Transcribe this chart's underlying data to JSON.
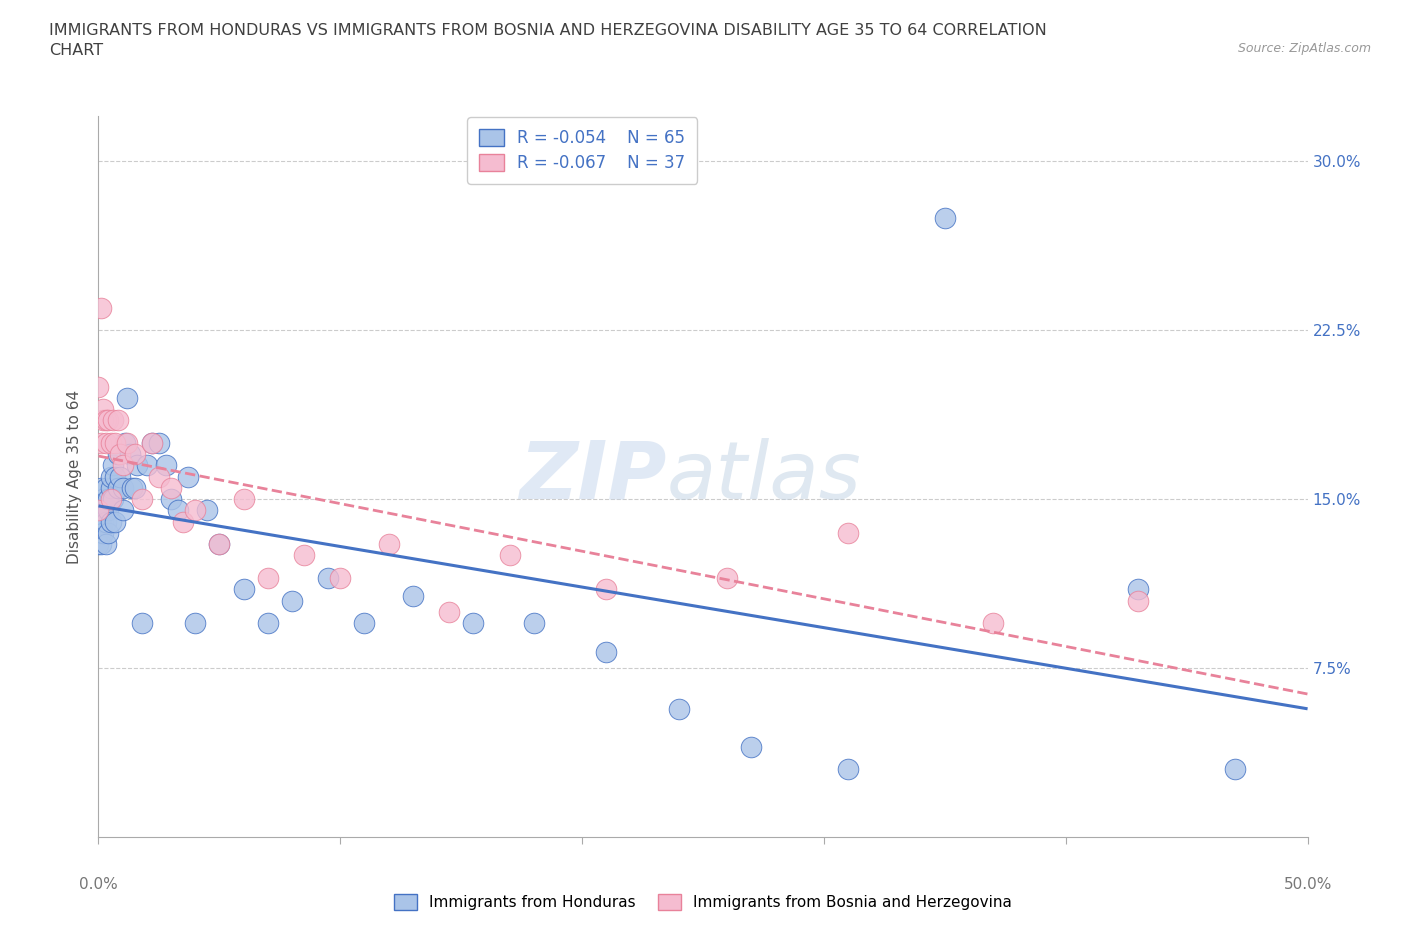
{
  "title": "IMMIGRANTS FROM HONDURAS VS IMMIGRANTS FROM BOSNIA AND HERZEGOVINA DISABILITY AGE 35 TO 64 CORRELATION\nCHART",
  "source_text": "Source: ZipAtlas.com",
  "ylabel": "Disability Age 35 to 64",
  "xlim": [
    0.0,
    0.5
  ],
  "ylim": [
    0.0,
    0.32
  ],
  "xticks": [
    0.0,
    0.1,
    0.2,
    0.3,
    0.4,
    0.5
  ],
  "xtick_labels": [
    "",
    "",
    "",
    "",
    "",
    ""
  ],
  "xedge_labels": [
    "0.0%",
    "50.0%"
  ],
  "yticks": [
    0.075,
    0.15,
    0.225,
    0.3
  ],
  "ytick_labels": [
    "7.5%",
    "15.0%",
    "22.5%",
    "30.0%"
  ],
  "color_blue": "#aac4e8",
  "color_pink": "#f5bcd0",
  "line_blue": "#4472c4",
  "line_pink": "#e8829a",
  "R_blue": -0.054,
  "N_blue": 65,
  "R_pink": -0.067,
  "N_pink": 37,
  "legend_label_blue": "Immigrants from Honduras",
  "legend_label_pink": "Immigrants from Bosnia and Herzegovina",
  "watermark_part1": "ZIP",
  "watermark_part2": "atlas",
  "background_color": "#ffffff",
  "grid_color": "#cccccc",
  "title_color": "#404040",
  "axis_label_color": "#555555",
  "tick_label_color": "#777777",
  "right_ytick_color": "#4472c4",
  "blue_scatter_x": [
    0.0,
    0.0,
    0.0,
    0.0,
    0.0,
    0.001,
    0.001,
    0.001,
    0.001,
    0.001,
    0.002,
    0.002,
    0.002,
    0.002,
    0.003,
    0.003,
    0.003,
    0.003,
    0.004,
    0.004,
    0.004,
    0.005,
    0.005,
    0.005,
    0.006,
    0.006,
    0.007,
    0.007,
    0.008,
    0.008,
    0.009,
    0.01,
    0.01,
    0.011,
    0.012,
    0.013,
    0.014,
    0.015,
    0.016,
    0.018,
    0.02,
    0.022,
    0.025,
    0.028,
    0.03,
    0.033,
    0.037,
    0.04,
    0.045,
    0.05,
    0.06,
    0.07,
    0.08,
    0.095,
    0.11,
    0.13,
    0.155,
    0.18,
    0.21,
    0.24,
    0.27,
    0.31,
    0.35,
    0.43,
    0.47
  ],
  "blue_scatter_y": [
    0.14,
    0.135,
    0.145,
    0.13,
    0.15,
    0.145,
    0.14,
    0.135,
    0.13,
    0.155,
    0.14,
    0.135,
    0.15,
    0.145,
    0.13,
    0.145,
    0.14,
    0.155,
    0.145,
    0.15,
    0.135,
    0.155,
    0.14,
    0.16,
    0.165,
    0.15,
    0.16,
    0.14,
    0.155,
    0.17,
    0.16,
    0.155,
    0.145,
    0.175,
    0.195,
    0.17,
    0.155,
    0.155,
    0.165,
    0.095,
    0.165,
    0.175,
    0.175,
    0.165,
    0.15,
    0.145,
    0.16,
    0.095,
    0.145,
    0.13,
    0.11,
    0.095,
    0.105,
    0.115,
    0.095,
    0.107,
    0.095,
    0.095,
    0.082,
    0.057,
    0.04,
    0.03,
    0.275,
    0.11,
    0.03
  ],
  "pink_scatter_x": [
    0.0,
    0.0,
    0.001,
    0.001,
    0.002,
    0.002,
    0.003,
    0.003,
    0.004,
    0.005,
    0.005,
    0.006,
    0.007,
    0.008,
    0.009,
    0.01,
    0.012,
    0.015,
    0.018,
    0.022,
    0.025,
    0.03,
    0.035,
    0.04,
    0.05,
    0.06,
    0.07,
    0.085,
    0.1,
    0.12,
    0.145,
    0.17,
    0.21,
    0.26,
    0.31,
    0.37,
    0.43
  ],
  "pink_scatter_y": [
    0.145,
    0.2,
    0.175,
    0.235,
    0.185,
    0.19,
    0.175,
    0.185,
    0.185,
    0.15,
    0.175,
    0.185,
    0.175,
    0.185,
    0.17,
    0.165,
    0.175,
    0.17,
    0.15,
    0.175,
    0.16,
    0.155,
    0.14,
    0.145,
    0.13,
    0.15,
    0.115,
    0.125,
    0.115,
    0.13,
    0.1,
    0.125,
    0.11,
    0.115,
    0.135,
    0.095,
    0.105
  ]
}
